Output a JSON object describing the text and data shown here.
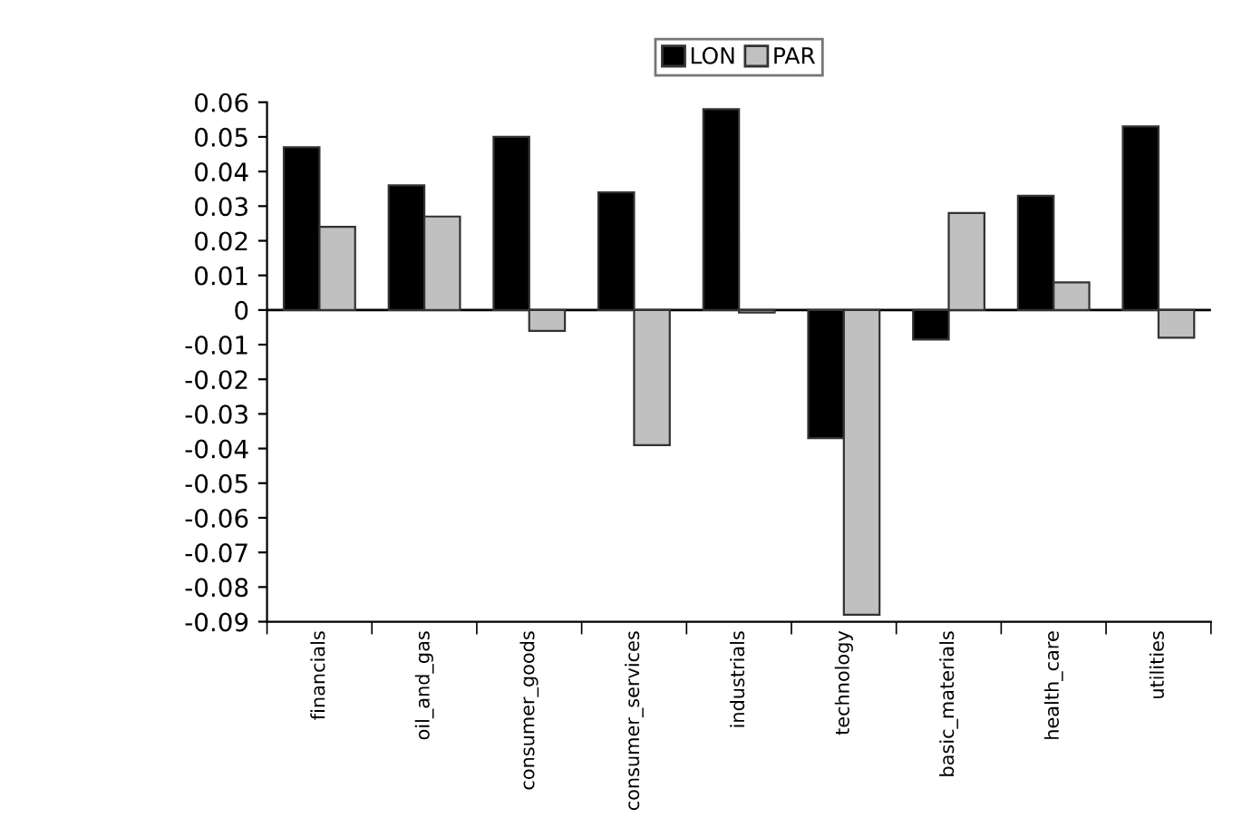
{
  "chart_data": {
    "type": "bar",
    "categories": [
      "financials",
      "oil_and_gas",
      "consumer_goods",
      "consumer_services",
      "industrials",
      "technology",
      "basic_materials",
      "health_care",
      "utilities"
    ],
    "series": [
      {
        "name": "LON",
        "color": "#000000",
        "values": [
          0.047,
          0.036,
          0.05,
          0.034,
          0.058,
          -0.037,
          -0.0085,
          0.033,
          0.053
        ]
      },
      {
        "name": "PAR",
        "color": "#c0c0c0",
        "values": [
          0.024,
          0.027,
          -0.006,
          -0.039,
          -0.0007,
          -0.088,
          0.028,
          0.008,
          -0.008
        ]
      }
    ],
    "ylim": [
      -0.09,
      0.06
    ],
    "yticks": [
      0.06,
      0.05,
      0.04,
      0.03,
      0.02,
      0.01,
      0,
      -0.01,
      -0.02,
      -0.03,
      -0.04,
      -0.05,
      -0.06,
      -0.07,
      -0.08,
      -0.09
    ],
    "ref_lines": [
      {
        "axis": "y",
        "value": 0,
        "color": "#000000"
      }
    ],
    "legend": "top",
    "grid": false
  }
}
